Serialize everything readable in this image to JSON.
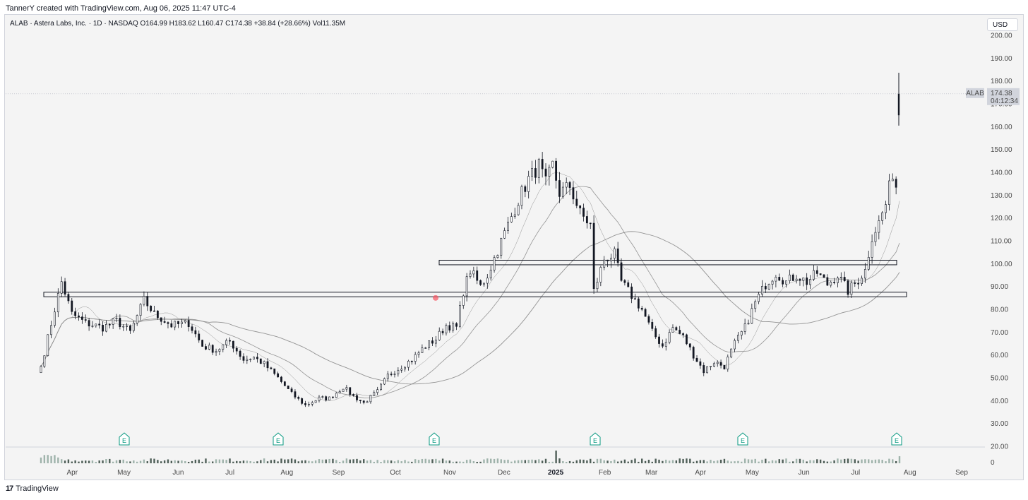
{
  "header": {
    "caption": "TannerY created with TradingView.com, Aug 06, 2025 11:47 UTC-4",
    "symbol_line": "ALAB · Astera Labs, Inc. · 1D · NASDAQ  O164.99  H183.62  L160.47  C174.38  +38.84 (+28.66%)  Vol11.35M",
    "currency": "USD"
  },
  "footer": {
    "brand": "TradingView"
  },
  "price_label": {
    "symbol": "ALAB",
    "price": "174.38",
    "countdown": "04:12:34"
  },
  "colors": {
    "up": "#ffffff",
    "down": "#131722",
    "wick": "#131722",
    "ma": "#8a8a8a",
    "earnings": "#089981",
    "volume": "#6b7b74",
    "background": "#f4f4f4"
  },
  "chart_data": {
    "type": "candlestick",
    "symbol": "ALAB",
    "interval": "1D",
    "ylim": [
      20,
      200
    ],
    "y_ticks": [
      "200.00",
      "190.00",
      "180.00",
      "170.00",
      "160.00",
      "150.00",
      "140.00",
      "130.00",
      "120.00",
      "110.00",
      "100.00",
      "90.00",
      "80.00",
      "70.00",
      "60.00",
      "50.00",
      "40.00",
      "30.00",
      "20.00"
    ],
    "x_ticks": [
      "Apr",
      "May",
      "Jun",
      "Jul",
      "Aug",
      "Sep",
      "Oct",
      "Nov",
      "Dec",
      "2025",
      "Feb",
      "Mar",
      "Apr",
      "May",
      "Jun",
      "Jul",
      "Aug",
      "Sep"
    ],
    "volume_axis_label": "0",
    "close_path": [
      [
        0,
        55
      ],
      [
        4,
        80
      ],
      [
        6,
        92
      ],
      [
        9,
        78
      ],
      [
        13,
        74
      ],
      [
        18,
        72
      ],
      [
        22,
        75
      ],
      [
        26,
        70
      ],
      [
        30,
        84
      ],
      [
        33,
        78
      ],
      [
        38,
        73
      ],
      [
        43,
        74
      ],
      [
        47,
        64
      ],
      [
        51,
        62
      ],
      [
        55,
        66
      ],
      [
        59,
        58
      ],
      [
        62,
        59
      ],
      [
        65,
        56
      ],
      [
        69,
        50
      ],
      [
        73,
        43
      ],
      [
        77,
        38
      ],
      [
        81,
        41
      ],
      [
        84,
        41
      ],
      [
        88,
        46
      ],
      [
        91,
        42
      ],
      [
        94,
        39
      ],
      [
        98,
        44
      ],
      [
        101,
        51
      ],
      [
        104,
        54
      ],
      [
        108,
        58
      ],
      [
        112,
        64
      ],
      [
        115,
        67
      ],
      [
        118,
        73
      ],
      [
        121,
        72
      ],
      [
        123,
        88
      ],
      [
        125,
        97
      ],
      [
        128,
        90
      ],
      [
        130,
        95
      ],
      [
        133,
        106
      ],
      [
        136,
        117
      ],
      [
        139,
        128
      ],
      [
        142,
        137
      ],
      [
        145,
        143
      ],
      [
        147,
        135
      ],
      [
        149,
        143
      ],
      [
        151,
        131
      ],
      [
        154,
        134
      ],
      [
        157,
        122
      ],
      [
        160,
        117
      ],
      [
        161,
        88
      ],
      [
        164,
        102
      ],
      [
        167,
        104
      ],
      [
        169,
        92
      ],
      [
        172,
        86
      ],
      [
        175,
        80
      ],
      [
        178,
        70
      ],
      [
        181,
        64
      ],
      [
        184,
        72
      ],
      [
        187,
        68
      ],
      [
        190,
        60
      ],
      [
        193,
        53
      ],
      [
        196,
        57
      ],
      [
        199,
        55
      ],
      [
        202,
        65
      ],
      [
        205,
        72
      ],
      [
        208,
        83
      ],
      [
        211,
        91
      ],
      [
        214,
        96
      ],
      [
        217,
        92
      ],
      [
        220,
        95
      ],
      [
        223,
        92
      ],
      [
        226,
        96
      ],
      [
        229,
        91
      ],
      [
        232,
        95
      ],
      [
        235,
        88
      ],
      [
        238,
        93
      ],
      [
        240,
        97
      ],
      [
        242,
        112
      ],
      [
        244,
        118
      ],
      [
        246,
        126
      ],
      [
        248,
        140
      ],
      [
        249,
        134
      ],
      [
        250,
        174.38
      ]
    ],
    "session_count": 251,
    "annotations": {
      "horizontal_zones": [
        {
          "price_low": 85.5,
          "price_high": 87.5
        },
        {
          "price_low": 99.5,
          "price_high": 101.5
        }
      ],
      "earnings_markers": [
        "E",
        "E",
        "E",
        "E",
        "E",
        "E"
      ],
      "last_price": 174.38,
      "change": "+38.84 (+28.66%)"
    }
  }
}
